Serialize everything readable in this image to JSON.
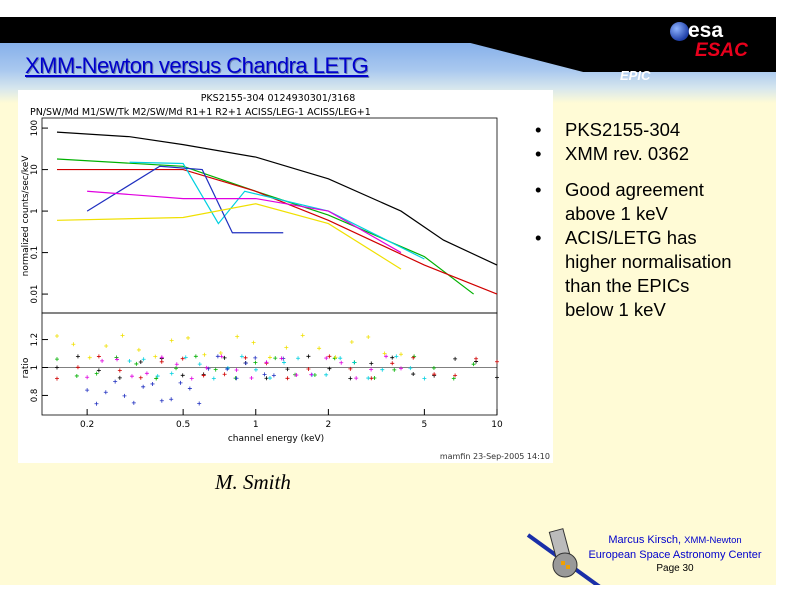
{
  "slide": {
    "title": "XMM-Newton versus Chandra  LETG",
    "section_label": "EPIC",
    "logo": {
      "esa": "esa",
      "esac": "ESAC"
    },
    "bullets": [
      "PKS2155-304",
      "XMM rev. 0362",
      "Good agreement above 1 keV",
      "ACIS/LETG has higher normalisation than the EPICs below 1 keV"
    ],
    "author_credit": "M. Smith",
    "footer": {
      "name": "Marcus Kirsch,",
      "mission": "XMM-Newton",
      "org": "European Space Astronomy Center",
      "page": "Page 30"
    }
  },
  "plot": {
    "title": "PKS2155-304 0124930301/3168",
    "subtitle": "PN/SW/Md M1/SW/Tk M2/SW/Md R1+1 R2+1 ACISS/LEG-1 ACISS/LEG+1",
    "ylabel_top": "normalized counts/sec/keV",
    "ylabel_bottom": "ratio",
    "xlabel": "channel energy (keV)",
    "stamp": "mamfin 23-Sep-2005 14:10",
    "x_ticks": [
      "0.2",
      "0.5",
      "1",
      "2",
      "5",
      "10"
    ],
    "y_ticks_top": [
      "0.01",
      "0.1",
      "1",
      "10",
      "100"
    ],
    "y_ticks_bottom": [
      "0.8",
      "1",
      "1.2"
    ]
  },
  "chart_data": {
    "type": "line",
    "xscale": "log",
    "yscale": "log",
    "xlim": [
      0.13,
      10
    ],
    "ylim": [
      0.0035,
      175
    ],
    "ratio_ylim": [
      0.66,
      1.39
    ],
    "series": [
      {
        "color": "#000000",
        "x": [
          0.15,
          0.3,
          0.5,
          1,
          2,
          4,
          6,
          10
        ],
        "y": [
          80,
          62,
          40,
          20,
          6,
          1,
          0.2,
          0.05
        ]
      },
      {
        "color": "#00b000",
        "x": [
          0.15,
          0.5,
          1,
          2,
          5,
          8
        ],
        "y": [
          18,
          12,
          3,
          0.8,
          0.08,
          0.01
        ]
      },
      {
        "color": "#d00000",
        "x": [
          0.15,
          0.5,
          1,
          2,
          5,
          10
        ],
        "y": [
          10,
          10,
          3,
          0.6,
          0.05,
          0.01
        ]
      },
      {
        "color": "#00d0e0",
        "x": [
          0.3,
          0.5,
          0.7,
          0.9,
          2,
          5
        ],
        "y": [
          15,
          14,
          0.5,
          3,
          1,
          0.07
        ]
      },
      {
        "color": "#2030c0",
        "x": [
          0.2,
          0.4,
          0.6,
          0.8,
          1,
          1.3
        ],
        "y": [
          1,
          12,
          10,
          0.3,
          0.3,
          0.3
        ]
      },
      {
        "color": "#e000e0",
        "x": [
          0.2,
          0.5,
          1,
          2,
          4
        ],
        "y": [
          3,
          2,
          2,
          1,
          0.1
        ]
      },
      {
        "color": "#f0e000",
        "x": [
          0.15,
          0.5,
          1,
          2,
          4
        ],
        "y": [
          0.6,
          0.7,
          1.5,
          0.5,
          0.04
        ]
      }
    ]
  }
}
